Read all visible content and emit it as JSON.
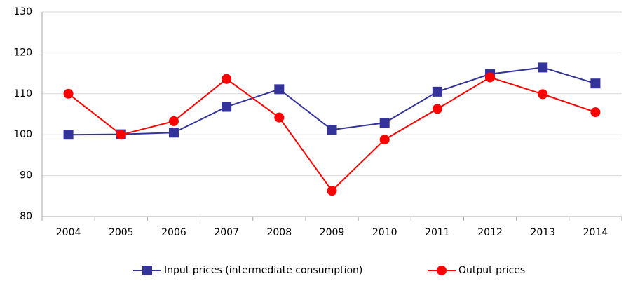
{
  "chart_data": {
    "type": "line",
    "categories": [
      "2004",
      "2005",
      "2006",
      "2007",
      "2008",
      "2009",
      "2010",
      "2011",
      "2012",
      "2013",
      "2014"
    ],
    "series": [
      {
        "name": "Input prices (intermediate consumption)",
        "color": "#333399",
        "marker": "square",
        "values": [
          100,
          100.1,
          100.5,
          106.8,
          111.1,
          101.2,
          102.9,
          110.5,
          114.8,
          116.4,
          112.5
        ]
      },
      {
        "name": "Output prices",
        "color": "#ff0000",
        "marker": "circle",
        "values": [
          110,
          100,
          103.3,
          113.6,
          104.2,
          86.3,
          98.8,
          106.3,
          114,
          109.9,
          105.5
        ]
      }
    ],
    "ylim": [
      80,
      130
    ],
    "yticks": [
      80,
      90,
      100,
      110,
      120,
      130
    ],
    "grid": true,
    "legend": "bottom"
  }
}
